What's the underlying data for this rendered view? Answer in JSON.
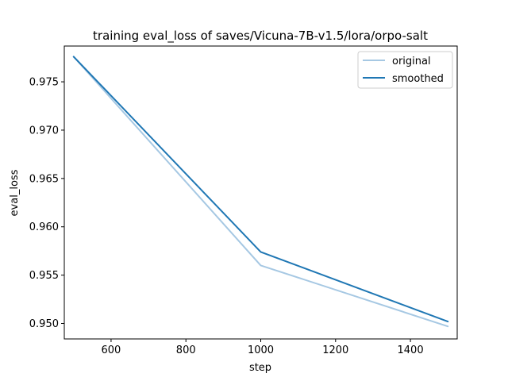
{
  "chart_data": {
    "type": "line",
    "title": "training eval_loss of saves/Vicuna-7B-v1.5/lora/orpo-salt",
    "xlabel": "step",
    "ylabel": "eval_loss",
    "xlim": [
      475,
      1525
    ],
    "ylim": [
      0.9484,
      0.9787
    ],
    "xticks": [
      600,
      800,
      1000,
      1200,
      1400
    ],
    "xtick_labels": [
      "600",
      "800",
      "1000",
      "1200",
      "1400"
    ],
    "yticks": [
      0.95,
      0.955,
      0.96,
      0.965,
      0.97,
      0.975
    ],
    "ytick_labels": [
      "0.950",
      "0.955",
      "0.960",
      "0.965",
      "0.970",
      "0.975"
    ],
    "grid": false,
    "legend_position": "top-right",
    "series": [
      {
        "name": "original",
        "color": "#a6c8e3",
        "x": [
          500,
          1000,
          1500
        ],
        "y": [
          0.9776,
          0.956,
          0.9497
        ]
      },
      {
        "name": "smoothed",
        "color": "#1f77b4",
        "x": [
          500,
          1000,
          1500
        ],
        "y": [
          0.9776,
          0.9574,
          0.9502
        ]
      }
    ]
  }
}
